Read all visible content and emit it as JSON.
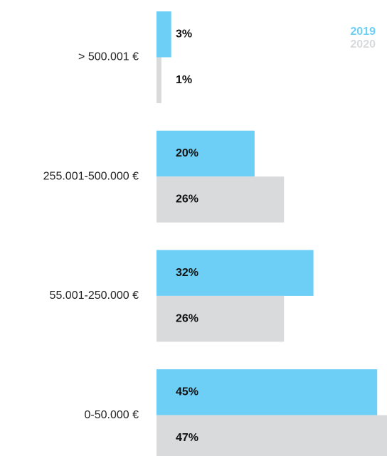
{
  "chart_data": {
    "type": "bar",
    "orientation": "horizontal",
    "categories": [
      "> 500.001 €",
      "255.001-500.000 €",
      "55.001-250.000 €",
      "0-50.000 €"
    ],
    "series": [
      {
        "name": "2019",
        "color": "#6dcff6",
        "values": [
          3,
          20,
          32,
          45
        ],
        "value_labels": [
          "3%",
          "20%",
          "32%",
          "45%"
        ]
      },
      {
        "name": "2020",
        "color": "#d9dadb",
        "values": [
          1,
          26,
          26,
          47
        ],
        "value_labels": [
          "1%",
          "26%",
          "26%",
          "47%"
        ]
      }
    ],
    "legend": "top-right"
  }
}
